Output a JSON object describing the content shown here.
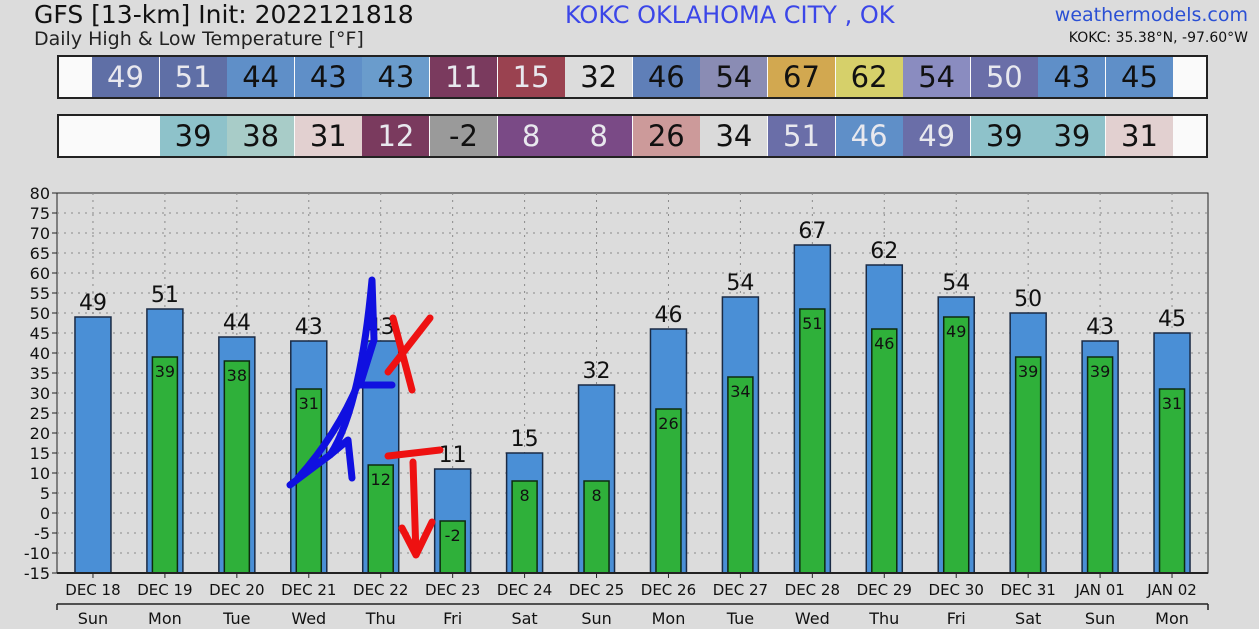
{
  "header": {
    "title": "GFS [13-km] Init: 2022121818",
    "subtitle": "Daily High & Low Temperature [°F]",
    "station": "KOKC OKLAHOMA CITY  , OK",
    "site": "weathermodels.com",
    "coords": "KOKC: 35.38°N, -97.60°W"
  },
  "high_row": [
    {
      "value": "49",
      "bg": "#5f6fa6",
      "fg": "#e8e8ee"
    },
    {
      "value": "51",
      "bg": "#5f6fa6",
      "fg": "#e8e8ee"
    },
    {
      "value": "44",
      "bg": "#5f8fc8",
      "fg": "#111111"
    },
    {
      "value": "43",
      "bg": "#5f8fc8",
      "fg": "#111111"
    },
    {
      "value": "43",
      "bg": "#6a9ccc",
      "fg": "#111111"
    },
    {
      "value": "11",
      "bg": "#7a3a5e",
      "fg": "#e8e8ee"
    },
    {
      "value": "15",
      "bg": "#9a4250",
      "fg": "#e8e8ee"
    },
    {
      "value": "32",
      "bg": "#dcdcdc",
      "fg": "#111111"
    },
    {
      "value": "46",
      "bg": "#5f7fb8",
      "fg": "#111111"
    },
    {
      "value": "54",
      "bg": "#8a8cb4",
      "fg": "#111111"
    },
    {
      "value": "67",
      "bg": "#d2a850",
      "fg": "#111111"
    },
    {
      "value": "62",
      "bg": "#d6d06a",
      "fg": "#111111"
    },
    {
      "value": "54",
      "bg": "#8a8cc0",
      "fg": "#111111"
    },
    {
      "value": "50",
      "bg": "#6a6ea8",
      "fg": "#e8e8ee"
    },
    {
      "value": "43",
      "bg": "#5f8fc8",
      "fg": "#111111"
    },
    {
      "value": "45",
      "bg": "#5f8fc8",
      "fg": "#111111"
    }
  ],
  "low_row": [
    {
      "value": "",
      "bg": "#fafafa",
      "fg": "#111111"
    },
    {
      "value": "39",
      "bg": "#8ec2ca",
      "fg": "#111111"
    },
    {
      "value": "38",
      "bg": "#a8ccc8",
      "fg": "#111111"
    },
    {
      "value": "31",
      "bg": "#e2d0d0",
      "fg": "#111111"
    },
    {
      "value": "12",
      "bg": "#7a3a5e",
      "fg": "#e8e8ee"
    },
    {
      "value": "-2",
      "bg": "#9a9a9a",
      "fg": "#111111"
    },
    {
      "value": "8",
      "bg": "#7a4a86",
      "fg": "#e8e8ee"
    },
    {
      "value": "8",
      "bg": "#7a4a86",
      "fg": "#e8e8ee"
    },
    {
      "value": "26",
      "bg": "#cc9a9a",
      "fg": "#111111"
    },
    {
      "value": "34",
      "bg": "#dadada",
      "fg": "#111111"
    },
    {
      "value": "51",
      "bg": "#6a6ea8",
      "fg": "#e8e8ee"
    },
    {
      "value": "46",
      "bg": "#5f8fc8",
      "fg": "#e8e8ee"
    },
    {
      "value": "49",
      "bg": "#6a6ea8",
      "fg": "#e8e8ee"
    },
    {
      "value": "39",
      "bg": "#8ec2ca",
      "fg": "#111111"
    },
    {
      "value": "39",
      "bg": "#8ec2ca",
      "fg": "#111111"
    },
    {
      "value": "31",
      "bg": "#e2d0d0",
      "fg": "#111111"
    }
  ],
  "chart_data": {
    "type": "bar",
    "categories": [
      "DEC 18",
      "DEC 19",
      "DEC 20",
      "DEC 21",
      "DEC 22",
      "DEC 23",
      "DEC 24",
      "DEC 25",
      "DEC 26",
      "DEC 27",
      "DEC 28",
      "DEC 29",
      "DEC 30",
      "DEC 31",
      "JAN 01",
      "JAN 02"
    ],
    "weekdays": [
      "Sun",
      "Mon",
      "Tue",
      "Wed",
      "Thu",
      "Fri",
      "Sat",
      "Sun",
      "Mon",
      "Tue",
      "Wed",
      "Thu",
      "Fri",
      "Sat",
      "Sun",
      "Mon"
    ],
    "series": [
      {
        "values": [
          49,
          51,
          44,
          43,
          43,
          11,
          15,
          32,
          46,
          54,
          67,
          62,
          54,
          50,
          43,
          45
        ],
        "color": "#4a8fd6"
      },
      {
        "values": [
          null,
          39,
          38,
          31,
          12,
          -2,
          8,
          8,
          26,
          34,
          51,
          46,
          49,
          39,
          39,
          31
        ],
        "color": "#2fb03a"
      }
    ],
    "high_labels": [
      "49",
      "51",
      "44",
      "43",
      "43",
      "11",
      "15",
      "32",
      "46",
      "54",
      "67",
      "62",
      "54",
      "50",
      "43",
      "45"
    ],
    "low_labels": [
      "",
      "39",
      "38",
      "31",
      "12",
      "-2",
      "8",
      "8",
      "26",
      "34",
      "51",
      "46",
      "49",
      "39",
      "39",
      "31"
    ],
    "yticks": [
      "80",
      "75",
      "70",
      "65",
      "60",
      "55",
      "50",
      "45",
      "40",
      "35",
      "30",
      "25",
      "20",
      "15",
      "10",
      "5",
      "0",
      "-5",
      "-10",
      "-15"
    ],
    "ylim": [
      -15,
      80
    ],
    "grid": true,
    "annotations": {
      "blue_color": "#1010e0",
      "red_color": "#ee1111"
    }
  }
}
